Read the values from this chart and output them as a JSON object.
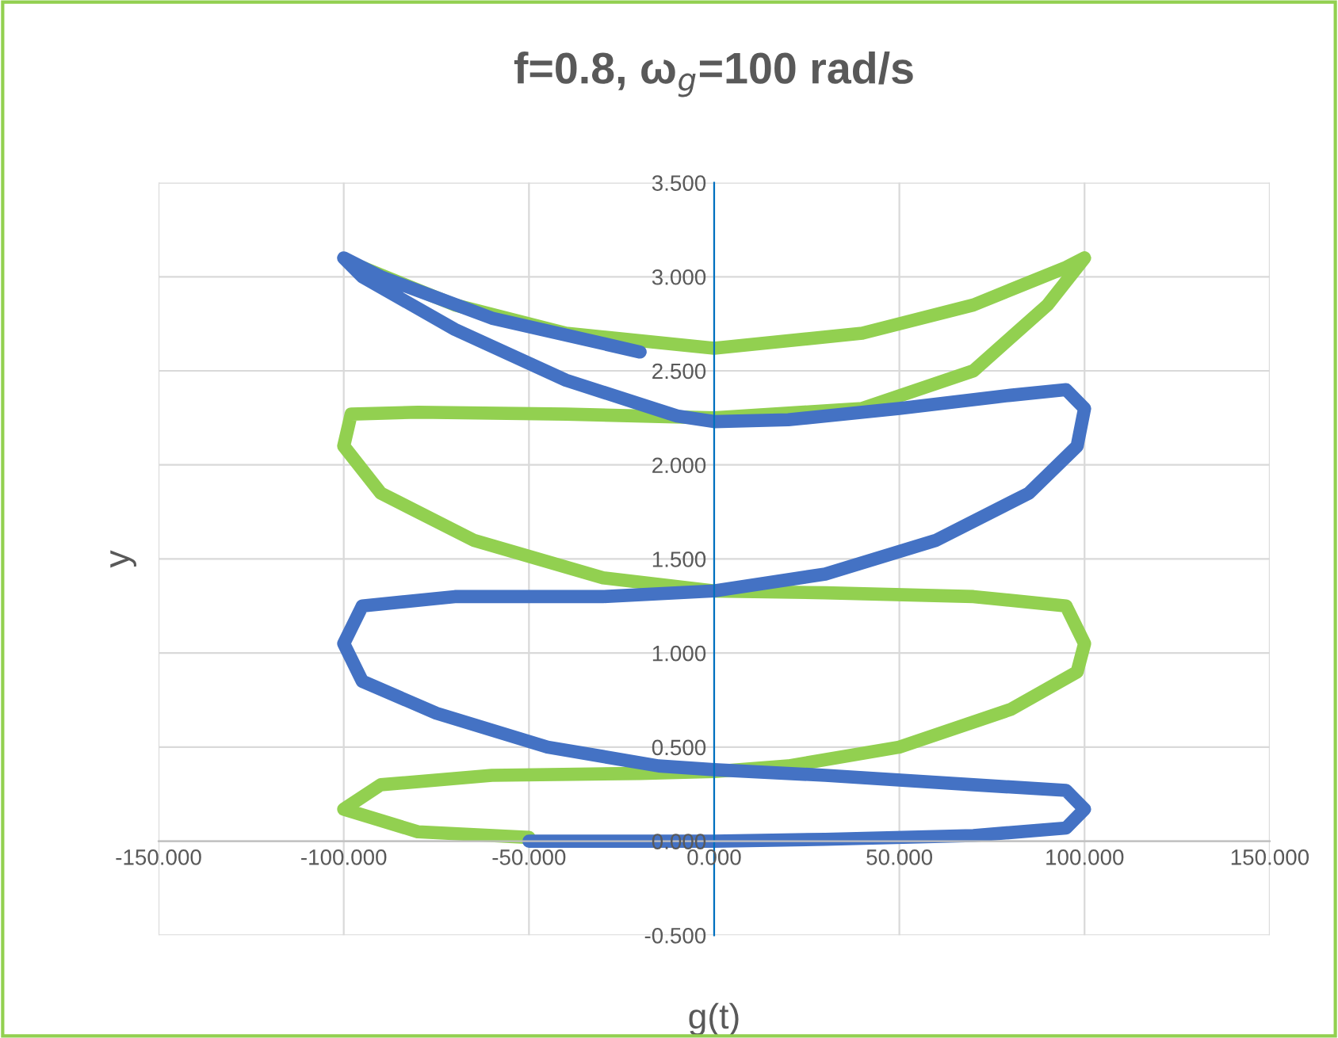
{
  "chart_data": {
    "type": "line",
    "title": "f=0.8, ω$_{g}$=100 rad/s",
    "xlabel": "g(t)",
    "ylabel": "y",
    "xlim": [
      -150,
      150
    ],
    "xticks": [
      {
        "value": -150,
        "label": "-150.000"
      },
      {
        "value": -100,
        "label": "-100.000"
      },
      {
        "value": -50,
        "label": "-50.000"
      },
      {
        "value": 0,
        "label": "0.000"
      },
      {
        "value": 50,
        "label": "50.000"
      },
      {
        "value": 100,
        "label": "100.000"
      },
      {
        "value": 150,
        "label": "150.000"
      }
    ],
    "ylim": [
      -0.5,
      3.5
    ],
    "yticks": [
      {
        "value": -0.5,
        "label": "-0.500"
      },
      {
        "value": 0,
        "label": "0.000"
      },
      {
        "value": 0.5,
        "label": "0.500"
      },
      {
        "value": 1,
        "label": "1.000"
      },
      {
        "value": 1.5,
        "label": "1.500"
      },
      {
        "value": 2,
        "label": "2.000"
      },
      {
        "value": 2.5,
        "label": "2.500"
      },
      {
        "value": 3,
        "label": "3.000"
      },
      {
        "value": 3.5,
        "label": "3.500"
      }
    ],
    "grid": true,
    "marker": "none",
    "line_style": "solid",
    "series": [
      {
        "color": "#92d050",
        "x": [
          -50,
          -80,
          -100,
          -90,
          -60,
          -20,
          0,
          20,
          50,
          80,
          98,
          100,
          95,
          70,
          30,
          0,
          -30,
          -65,
          -90,
          -100,
          -98,
          -80,
          -40,
          0,
          40,
          70,
          90,
          100,
          95,
          70,
          40,
          0,
          -40,
          -70,
          -95
        ],
        "values": [
          0.02,
          0.05,
          0.17,
          0.3,
          0.35,
          0.36,
          0.37,
          0.4,
          0.5,
          0.7,
          0.9,
          1.05,
          1.25,
          1.3,
          1.32,
          1.33,
          1.4,
          1.6,
          1.85,
          2.1,
          2.27,
          2.28,
          2.27,
          2.25,
          2.3,
          2.5,
          2.85,
          3.1,
          3.05,
          2.85,
          2.7,
          2.62,
          2.7,
          2.85,
          3.05
        ]
      },
      {
        "color": "#4472c4",
        "x": [
          -20,
          -60,
          -90,
          -100,
          -95,
          -70,
          -40,
          -10,
          0,
          20,
          50,
          80,
          95,
          100,
          98,
          85,
          60,
          30,
          0,
          -30,
          -70,
          -95,
          -100,
          -95,
          -75,
          -45,
          -15,
          0,
          30,
          70,
          95,
          100,
          95,
          70,
          30,
          0,
          -30,
          -50
        ],
        "values": [
          2.6,
          2.78,
          3.0,
          3.1,
          3.0,
          2.72,
          2.45,
          2.26,
          2.23,
          2.24,
          2.3,
          2.37,
          2.4,
          2.3,
          2.1,
          1.85,
          1.6,
          1.42,
          1.33,
          1.3,
          1.3,
          1.25,
          1.05,
          0.85,
          0.68,
          0.5,
          0.4,
          0.38,
          0.35,
          0.3,
          0.27,
          0.17,
          0.07,
          0.03,
          0.01,
          0.0,
          0.0,
          0.0
        ]
      }
    ]
  }
}
